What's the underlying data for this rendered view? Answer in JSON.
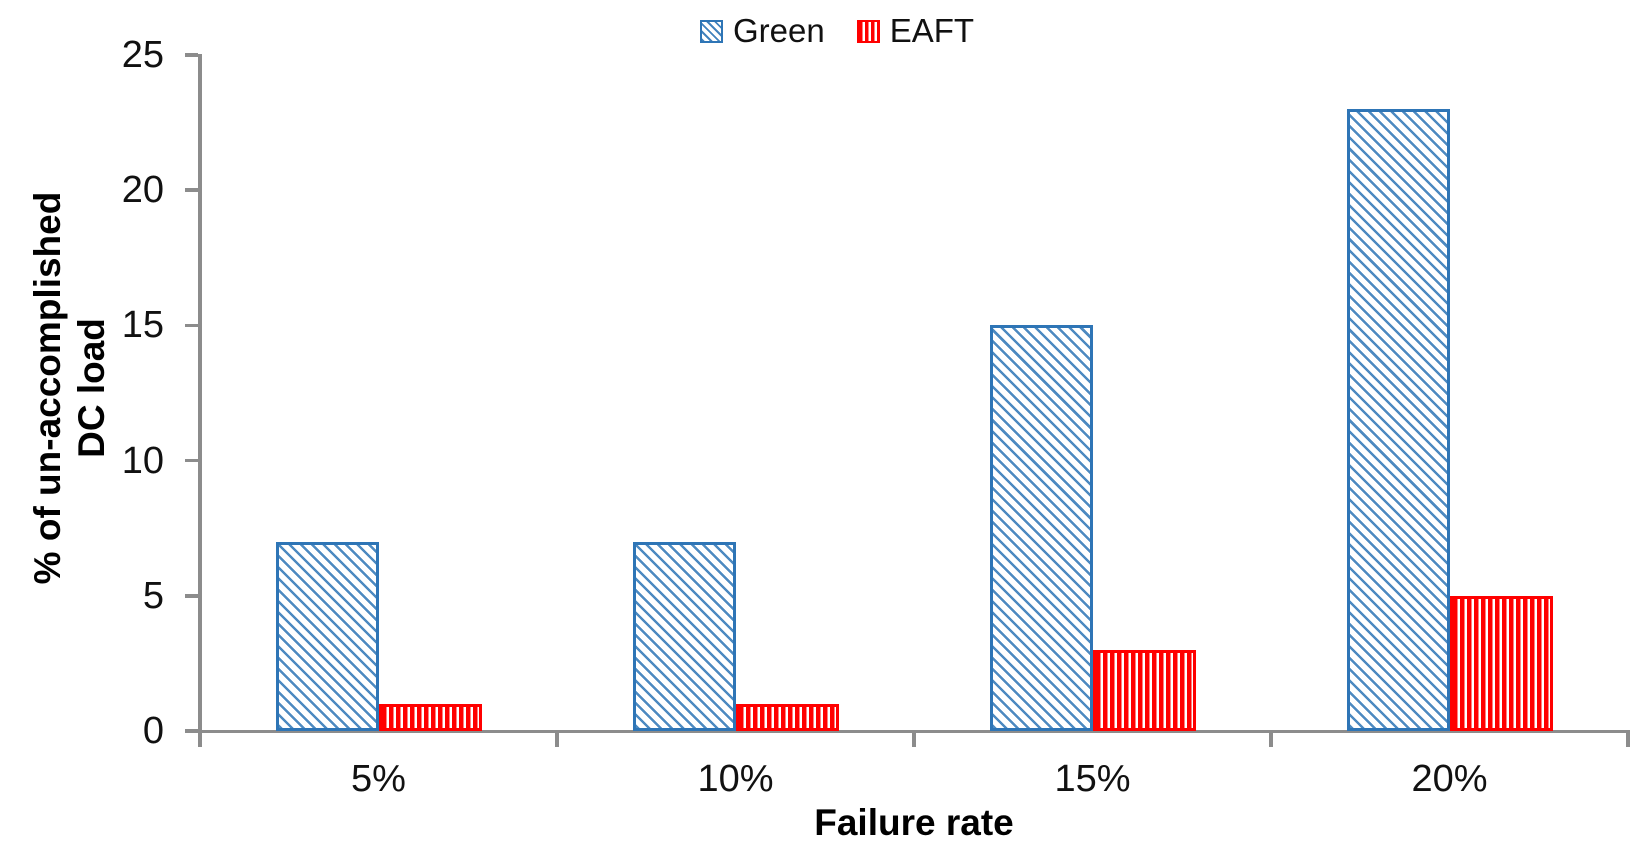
{
  "chart_data": {
    "type": "bar",
    "title": "",
    "categories": [
      "5%",
      "10%",
      "15%",
      "20%"
    ],
    "series": [
      {
        "name": "Green",
        "values": [
          7,
          7,
          15,
          23
        ],
        "color": "#2E75B6",
        "pattern": "diagonal-hatch"
      },
      {
        "name": "EAFT",
        "values": [
          1,
          1,
          3,
          5
        ],
        "color": "#FF0000",
        "pattern": "vertical-stripes"
      }
    ],
    "xlabel": "Failure rate",
    "ylabel": "% of un-accomplished DC load",
    "ylabel_lines": [
      "% of un-accomplished",
      "DC load"
    ],
    "ylim": [
      0,
      25
    ],
    "yticks": [
      0,
      5,
      10,
      15,
      20,
      25
    ],
    "legend_position": "top-center",
    "grid": false
  },
  "colors": {
    "axis": "#8C8C8C",
    "text": "#111111",
    "green_series": "#2E75B6",
    "eaft_series": "#FF0000"
  }
}
